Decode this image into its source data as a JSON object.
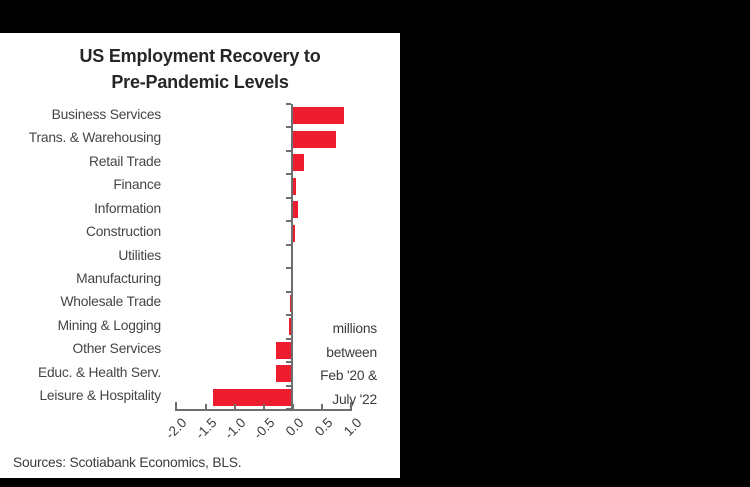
{
  "frame": {
    "background_color": "#000000",
    "panel_color": "#ffffff"
  },
  "chart_data": {
    "type": "bar",
    "orientation": "horizontal",
    "title_lines": [
      "US Employment Recovery to",
      "Pre-Pandemic Levels"
    ],
    "categories": [
      "Business Services",
      "Trans. & Warehousing",
      "Retail Trade",
      "Finance",
      "Information",
      "Construction",
      "Utilities",
      "Manufacturing",
      "Wholesale Trade",
      "Mining & Logging",
      "Other Services",
      "Educ. & Health Serv.",
      "Leisure & Hospitality"
    ],
    "values": [
      0.9,
      0.75,
      0.2,
      0.07,
      0.1,
      0.05,
      0.01,
      0.01,
      -0.03,
      -0.06,
      -0.28,
      -0.27,
      -1.35
    ],
    "bar_color": "#ED1C2E",
    "axis": {
      "min": -2.0,
      "max": 1.0,
      "tick_step": 0.5,
      "tick_labels": [
        "-2.0",
        "-1.5",
        "-1.0",
        "-0.5",
        "0.0",
        "0.5",
        "1.0"
      ],
      "color": "#6e6e6e"
    },
    "annotation_lines": [
      "millions",
      "between",
      "Feb '20 &",
      "July '22"
    ],
    "source": "Sources: Scotiabank Economics, BLS.",
    "grid": false,
    "legend": "none"
  }
}
